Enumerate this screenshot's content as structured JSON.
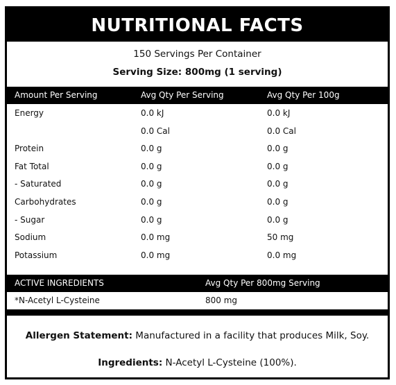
{
  "title": "NUTRITIONAL FACTS",
  "servings_per_container": "150 Servings Per Container",
  "serving_size": "Serving Size: 800mg (1 serving)",
  "nutrition_table": {
    "headers": [
      "Amount Per Serving",
      "Avg Qty Per Serving",
      "Avg Qty Per 100g"
    ],
    "rows": [
      {
        "name": "Energy",
        "per_serving": "0.0 kJ",
        "per_100g": "0.0 kJ"
      },
      {
        "name": "",
        "per_serving": "0.0 Cal",
        "per_100g": "0.0 Cal"
      },
      {
        "name": "Protein",
        "per_serving": "0.0 g",
        "per_100g": "0.0 g"
      },
      {
        "name": "Fat Total",
        "per_serving": "0.0 g",
        "per_100g": "0.0 g"
      },
      {
        "name": "- Saturated",
        "per_serving": "0.0 g",
        "per_100g": "0.0 g"
      },
      {
        "name": "Carbohydrates",
        "per_serving": "0.0 g",
        "per_100g": "0.0 g"
      },
      {
        "name": "- Sugar",
        "per_serving": "0.0 g",
        "per_100g": "0.0 g"
      },
      {
        "name": "Sodium",
        "per_serving": "0.0 mg",
        "per_100g": "50 mg"
      },
      {
        "name": "Potassium",
        "per_serving": "0.0 mg",
        "per_100g": "0.0 mg"
      }
    ]
  },
  "active_ingredients": {
    "headers": [
      "ACTIVE INGREDIENTS",
      "Avg Qty Per 800mg Serving"
    ],
    "rows": [
      {
        "name": "*N-Acetyl L-Cysteine",
        "amount": "800 mg"
      }
    ]
  },
  "allergen": {
    "label": "Allergen Statement:",
    "text": " Manufactured in a facility that produces Milk, Soy."
  },
  "ingredients": {
    "label": "Ingredients:",
    "text": " N-Acetyl L-Cysteine (100%)."
  },
  "colors": {
    "header_bg": "#000000",
    "header_text": "#ffffff",
    "body_text": "#111111"
  }
}
